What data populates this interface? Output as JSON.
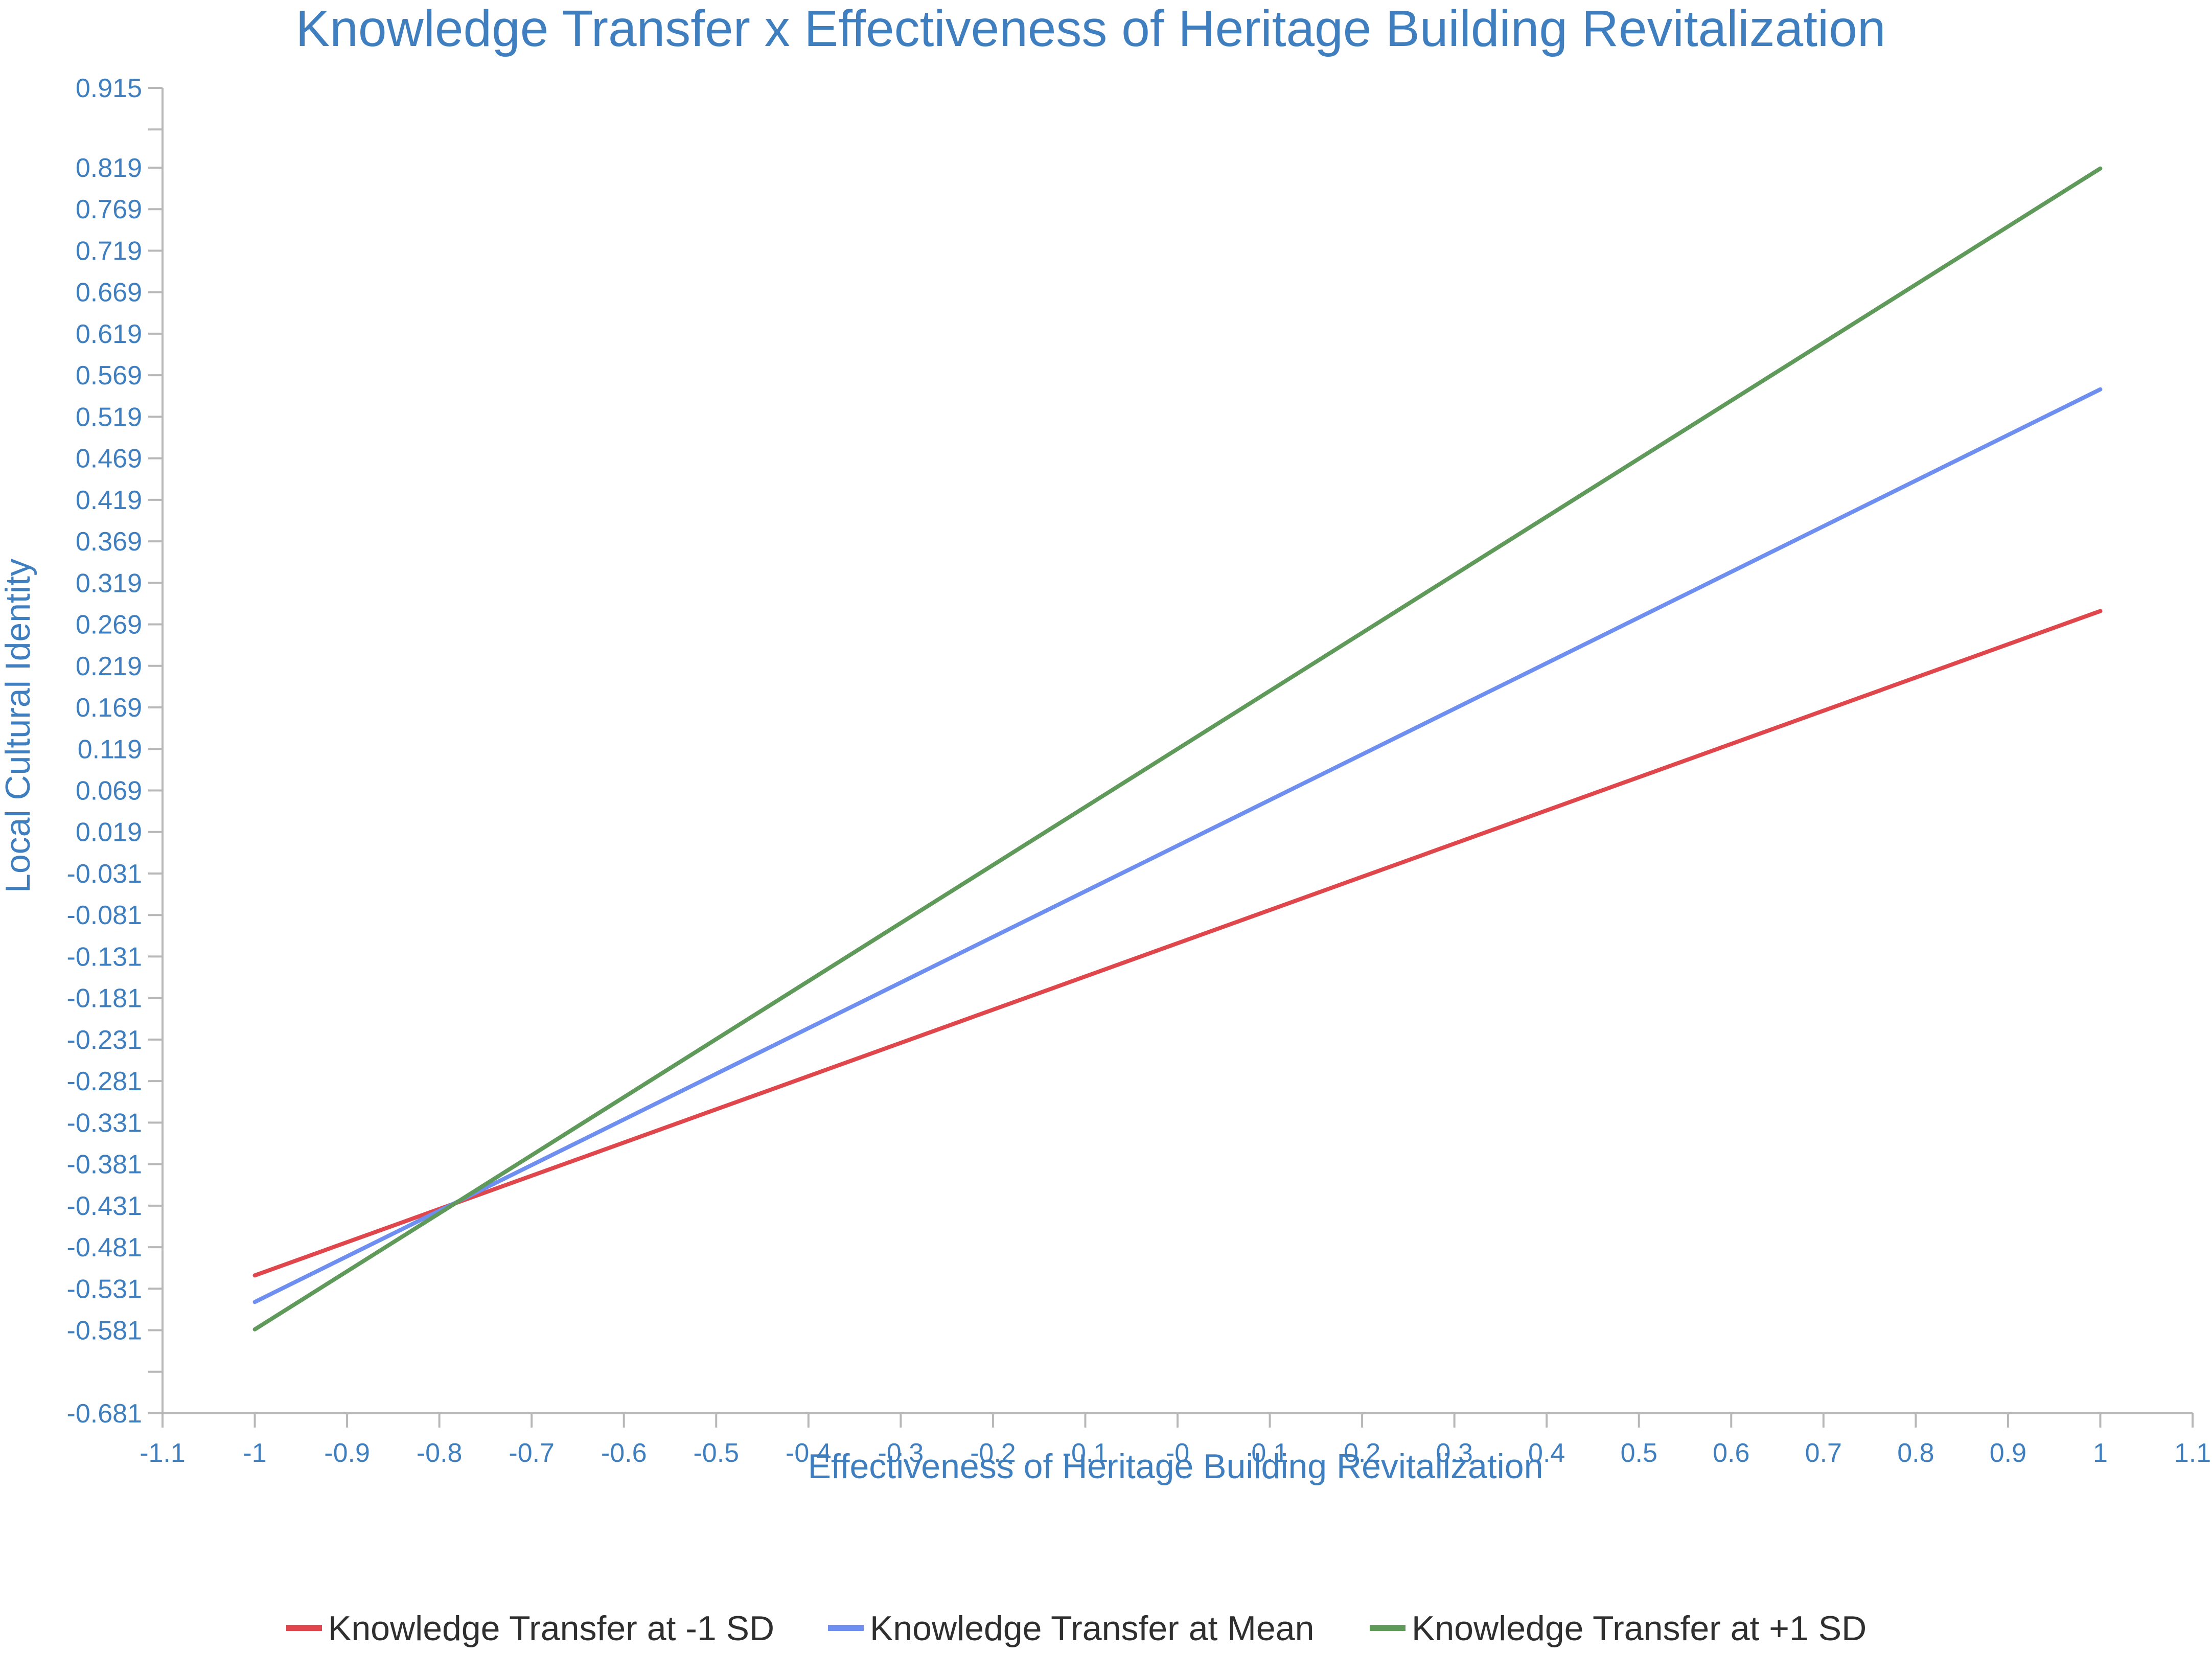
{
  "chart_data": {
    "type": "line",
    "title": "Knowledge Transfer x Effectiveness of Heritage Building Revitalization",
    "xlabel": "Effectiveness of Heritage Building Revitalization",
    "ylabel": "Local Cultural Identity",
    "xlim": [
      -1.1,
      1.1
    ],
    "ylim": [
      -0.681,
      0.915
    ],
    "x_ticks": [
      -1.1,
      -1,
      -0.9,
      -0.8,
      -0.7,
      -0.6,
      -0.5,
      -0.4,
      -0.3,
      -0.2,
      -0.1,
      0,
      0.1,
      0.2,
      0.3,
      0.4,
      0.5,
      0.6,
      0.7,
      0.8,
      0.9,
      1,
      1.1
    ],
    "x_tick_labels": [
      "-1.1",
      "-1",
      "-0.9",
      "-0.8",
      "-0.7",
      "-0.6",
      "-0.5",
      "-0.4",
      "-0.3",
      "-0.2",
      "-0.1",
      "-0",
      "0.1",
      "0.2",
      "0.3",
      "0.4",
      "0.5",
      "0.6",
      "0.7",
      "0.8",
      "0.9",
      "1",
      "1.1"
    ],
    "y_ticks": [
      -0.681,
      -0.631,
      -0.581,
      -0.531,
      -0.481,
      -0.431,
      -0.381,
      -0.331,
      -0.281,
      -0.231,
      -0.181,
      -0.131,
      -0.081,
      -0.031,
      0.019,
      0.069,
      0.119,
      0.169,
      0.219,
      0.269,
      0.319,
      0.369,
      0.419,
      0.469,
      0.519,
      0.569,
      0.619,
      0.669,
      0.719,
      0.769,
      0.819,
      0.865,
      0.915
    ],
    "y_tick_labels": [
      "-0.681",
      "",
      "-0.581",
      "-0.531",
      "-0.481",
      "-0.431",
      "-0.381",
      "-0.331",
      "-0.281",
      "-0.231",
      "-0.181",
      "-0.131",
      "-0.081",
      "-0.031",
      "0.019",
      "0.069",
      "0.119",
      "0.169",
      "0.219",
      "0.269",
      "0.319",
      "0.369",
      "0.419",
      "0.469",
      "0.519",
      "0.569",
      "0.619",
      "0.669",
      "0.719",
      "0.769",
      "0.819",
      "",
      "0.915"
    ],
    "series": [
      {
        "name": "Knowledge Transfer at -1 SD",
        "color": "#e0474c",
        "x": [
          -1,
          1
        ],
        "y": [
          -0.515,
          0.285
        ]
      },
      {
        "name": "Knowledge Transfer at Mean",
        "color": "#6e8ff0",
        "x": [
          -1,
          1
        ],
        "y": [
          -0.547,
          0.552
        ]
      },
      {
        "name": "Knowledge Transfer at +1 SD",
        "color": "#5f9a5b",
        "x": [
          -1,
          1
        ],
        "y": [
          -0.58,
          0.818
        ]
      }
    ],
    "grid": false,
    "legend_position": "bottom"
  }
}
